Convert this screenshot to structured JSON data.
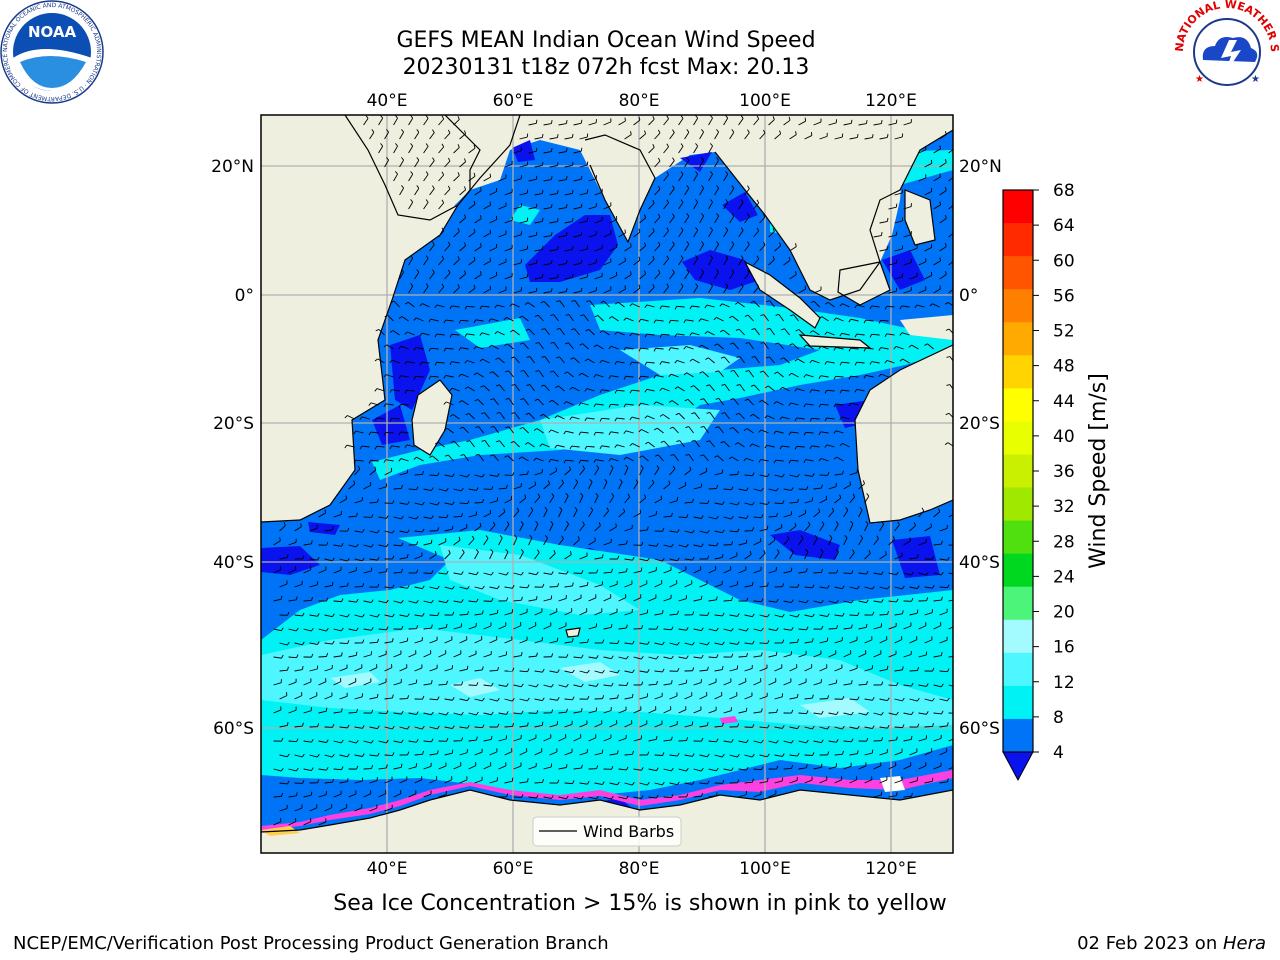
{
  "title": {
    "line1": "GEFS MEAN Indian Ocean Wind Speed",
    "line2": "20230131 t18z 072h fcst   Max: 20.13"
  },
  "subtitle": "Sea Ice Concentration > 15% is shown in pink to yellow",
  "footer": {
    "left": "NCEP/EMC/Verification Post Processing Product Generation Branch",
    "right_prefix": "02 Feb 2023 on ",
    "right_host": "Hera"
  },
  "map": {
    "top_lon_labels": [
      "40°E",
      "60°E",
      "80°E",
      "100°E",
      "120°E"
    ],
    "bottom_lon_labels": [
      "40°E",
      "60°E",
      "80°E",
      "100°E",
      "120°E"
    ],
    "lat_labels": [
      "20°N",
      "0°",
      "20°S",
      "40°S",
      "60°S"
    ],
    "legend_label": "Wind Barbs",
    "colors": {
      "land": "#efefdf",
      "ocean_4_8": "#0074f7",
      "ocean_0_4": "#0a13ee",
      "ocean_8_12": "#00f2f5",
      "ocean_12_16": "#4ef6ff",
      "ocean_16_20": "#a4fbff",
      "sea_ice": "#ff40e0"
    }
  },
  "colorbar": {
    "label": "Wind Speed [m/s]",
    "ticks": [
      "68",
      "64",
      "60",
      "56",
      "52",
      "48",
      "44",
      "40",
      "36",
      "32",
      "28",
      "24",
      "20",
      "16",
      "12",
      "8",
      "4"
    ],
    "colors": [
      "#ff0000",
      "#ff2a00",
      "#ff5500",
      "#ff8000",
      "#ffaa00",
      "#ffd400",
      "#ffff00",
      "#e8ff00",
      "#c8f000",
      "#a0e800",
      "#50e010",
      "#00d820",
      "#4cf57a",
      "#a4fbff",
      "#4ef6ff",
      "#00f2f5",
      "#0074f7"
    ],
    "under_color": "#0a13ee"
  },
  "logos": {
    "noaa_text": "NOAA",
    "noaa_ring": "NATIONAL OCEANIC AND ATMOSPHERIC ADMINISTRATION · U.S. DEPARTMENT OF COMMERCE",
    "nws_ring": "NATIONAL WEATHER SERVICE"
  }
}
